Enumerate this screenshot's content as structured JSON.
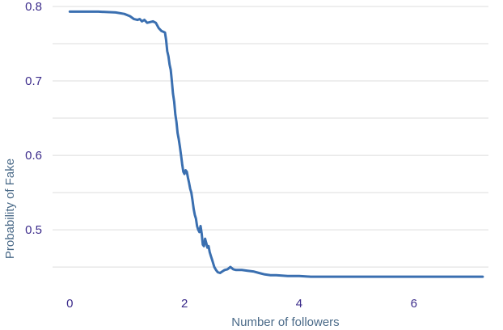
{
  "chart_data": {
    "type": "line",
    "title": "",
    "xlabel": "Number of followers",
    "ylabel": "Probability of Fake",
    "xlim": [
      -0.3,
      7.3
    ],
    "ylim": [
      0.436,
      0.8
    ],
    "x_ticks": [
      0,
      2,
      4,
      6
    ],
    "x_tick_labels": [
      "0",
      "2",
      "4",
      "6"
    ],
    "y_ticks": [
      0.5,
      0.6,
      0.7,
      0.8
    ],
    "y_tick_labels": [
      "0.5",
      "0.6",
      "0.7",
      "0.8"
    ],
    "y_minor_gridlines": [
      0.45,
      0.55,
      0.65,
      0.75
    ],
    "grid": true,
    "legend": "none",
    "series": [
      {
        "color": "#3a6fb0",
        "x": [
          0,
          0.5,
          0.8,
          0.95,
          1.05,
          1.12,
          1.18,
          1.22,
          1.26,
          1.3,
          1.35,
          1.4,
          1.45,
          1.5,
          1.55,
          1.6,
          1.63,
          1.66,
          1.68,
          1.7,
          1.72,
          1.74,
          1.76,
          1.78,
          1.8,
          1.82,
          1.84,
          1.86,
          1.88,
          1.9,
          1.92,
          1.94,
          1.96,
          1.98,
          2.0,
          2.02,
          2.04,
          2.06,
          2.08,
          2.1,
          2.12,
          2.14,
          2.16,
          2.18,
          2.2,
          2.22,
          2.24,
          2.26,
          2.28,
          2.3,
          2.32,
          2.34,
          2.36,
          2.38,
          2.4,
          2.42,
          2.44,
          2.46,
          2.48,
          2.5,
          2.52,
          2.55,
          2.58,
          2.62,
          2.66,
          2.7,
          2.75,
          2.8,
          2.85,
          2.9,
          2.92,
          2.95,
          3.0,
          3.1,
          3.2,
          3.3,
          3.4,
          3.5,
          3.6,
          3.8,
          4.0,
          4.2,
          4.5,
          5.0,
          6.0,
          7.2
        ],
        "y": [
          0.793,
          0.793,
          0.792,
          0.79,
          0.787,
          0.783,
          0.782,
          0.783,
          0.78,
          0.782,
          0.778,
          0.779,
          0.78,
          0.778,
          0.771,
          0.767,
          0.766,
          0.765,
          0.755,
          0.74,
          0.733,
          0.722,
          0.715,
          0.7,
          0.683,
          0.672,
          0.655,
          0.645,
          0.63,
          0.622,
          0.612,
          0.6,
          0.588,
          0.578,
          0.575,
          0.58,
          0.578,
          0.57,
          0.563,
          0.555,
          0.55,
          0.54,
          0.528,
          0.52,
          0.515,
          0.505,
          0.5,
          0.497,
          0.505,
          0.495,
          0.48,
          0.478,
          0.488,
          0.482,
          0.476,
          0.478,
          0.47,
          0.465,
          0.46,
          0.455,
          0.45,
          0.446,
          0.443,
          0.442,
          0.444,
          0.446,
          0.447,
          0.45,
          0.447,
          0.446,
          0.446,
          0.446,
          0.446,
          0.445,
          0.444,
          0.442,
          0.44,
          0.439,
          0.439,
          0.438,
          0.438,
          0.437,
          0.437,
          0.437,
          0.437,
          0.437
        ]
      }
    ]
  }
}
